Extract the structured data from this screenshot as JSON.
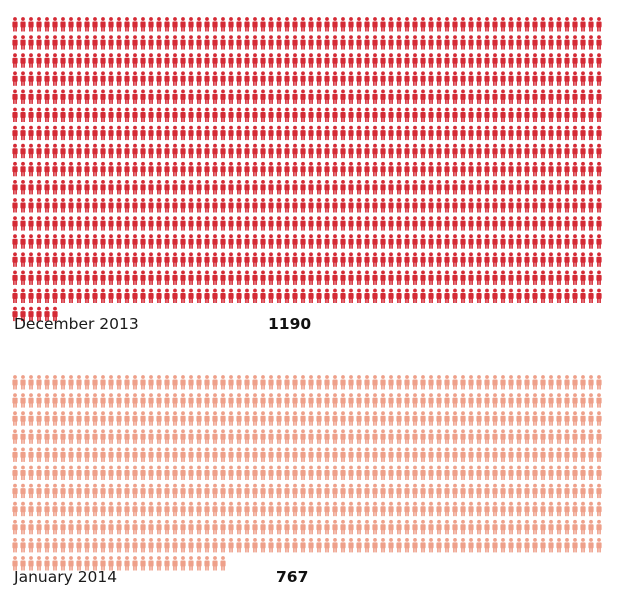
{
  "chart_data": {
    "type": "pictogram",
    "unit": "person-icon",
    "series": [
      {
        "category": "December 2013",
        "value": 1190,
        "color": "#d42a35"
      },
      {
        "category": "January 2014",
        "value": 767,
        "color": "#eea08a"
      }
    ]
  }
}
